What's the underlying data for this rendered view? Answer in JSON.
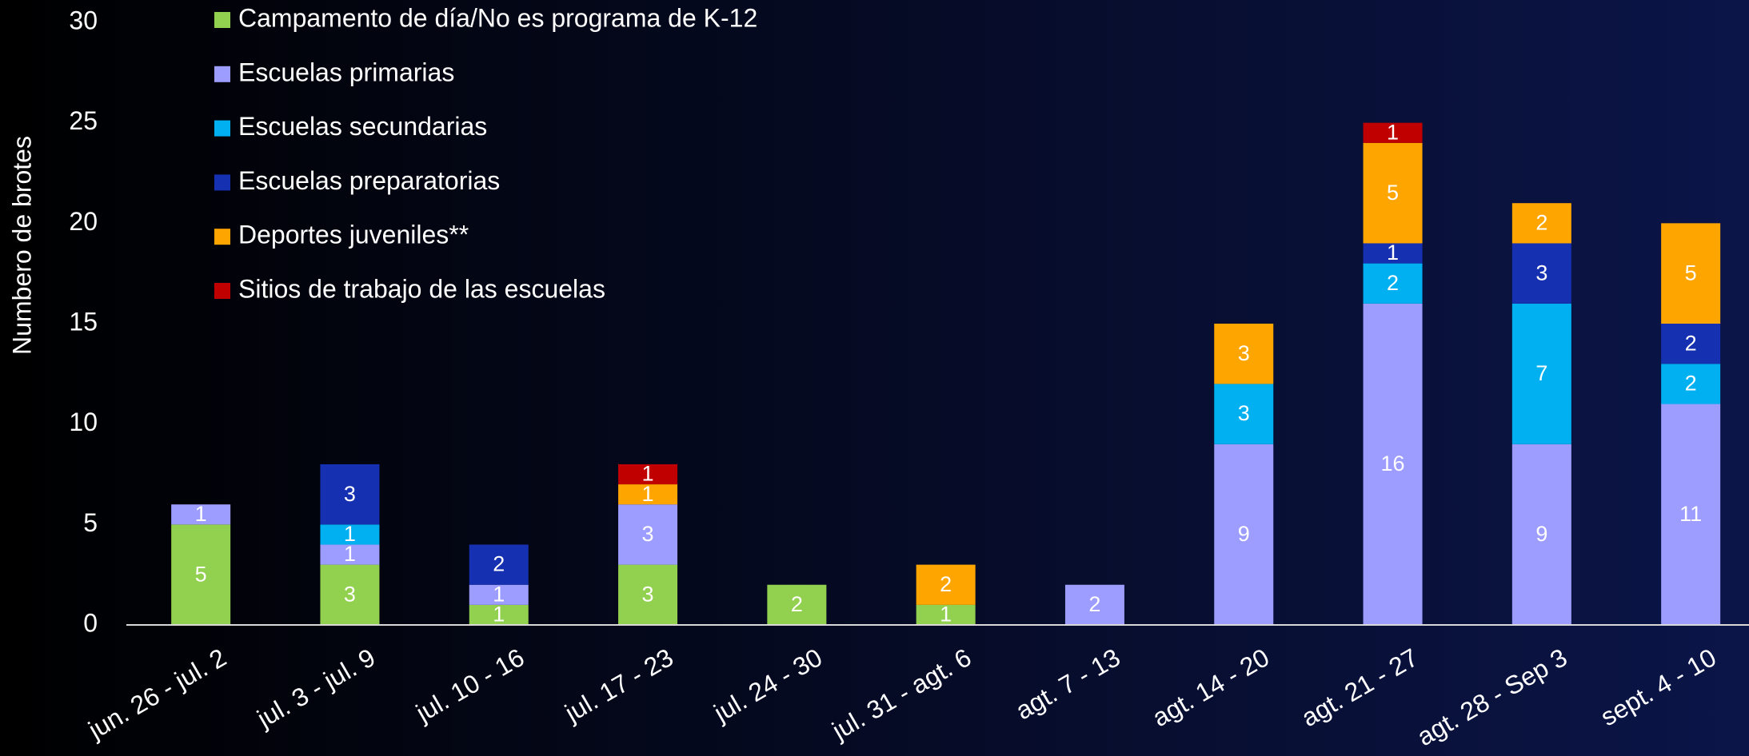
{
  "chart_data": {
    "type": "stacked_bar",
    "ylabel": "Numbero de brotes",
    "categories": [
      "jun. 26 - jul. 2",
      "jul. 3 - jul. 9",
      "jul. 10 - 16",
      "jul. 17 - 23",
      "jul. 24 - 30",
      "jul. 31 - agt. 6",
      "agt. 7 - 13",
      "agt. 14 - 20",
      "agt. 21 - 27",
      "agt. 28 - Sep 3",
      "sept. 4 - 10"
    ],
    "series": [
      {
        "name": "Campamento de día/No es programa de K-12",
        "color": "#92d050",
        "values": [
          5,
          3,
          1,
          3,
          2,
          1,
          null,
          null,
          null,
          null,
          null
        ]
      },
      {
        "name": "Escuelas primarias",
        "color": "#9d9dff",
        "values": [
          1,
          1,
          1,
          3,
          null,
          null,
          2,
          9,
          16,
          9,
          11
        ]
      },
      {
        "name": "Escuelas secundarias",
        "color": "#00b0f0",
        "values": [
          null,
          1,
          null,
          null,
          null,
          null,
          null,
          3,
          2,
          7,
          2
        ]
      },
      {
        "name": "Escuelas preparatorias",
        "color": "#1530b0",
        "values": [
          null,
          3,
          2,
          null,
          null,
          null,
          null,
          null,
          1,
          3,
          2
        ]
      },
      {
        "name": "Deportes juveniles**",
        "color": "#ffa500",
        "values": [
          null,
          null,
          null,
          1,
          null,
          2,
          null,
          3,
          5,
          2,
          5
        ]
      },
      {
        "name": "Sitios de trabajo de las escuelas",
        "color": "#c00000",
        "values": [
          null,
          null,
          null,
          1,
          null,
          null,
          null,
          null,
          1,
          null,
          null
        ]
      }
    ],
    "ylim": [
      0,
      30
    ],
    "yticks": [
      0,
      5,
      10,
      15,
      20,
      25,
      30
    ],
    "grid": false,
    "legend": "upper left"
  }
}
